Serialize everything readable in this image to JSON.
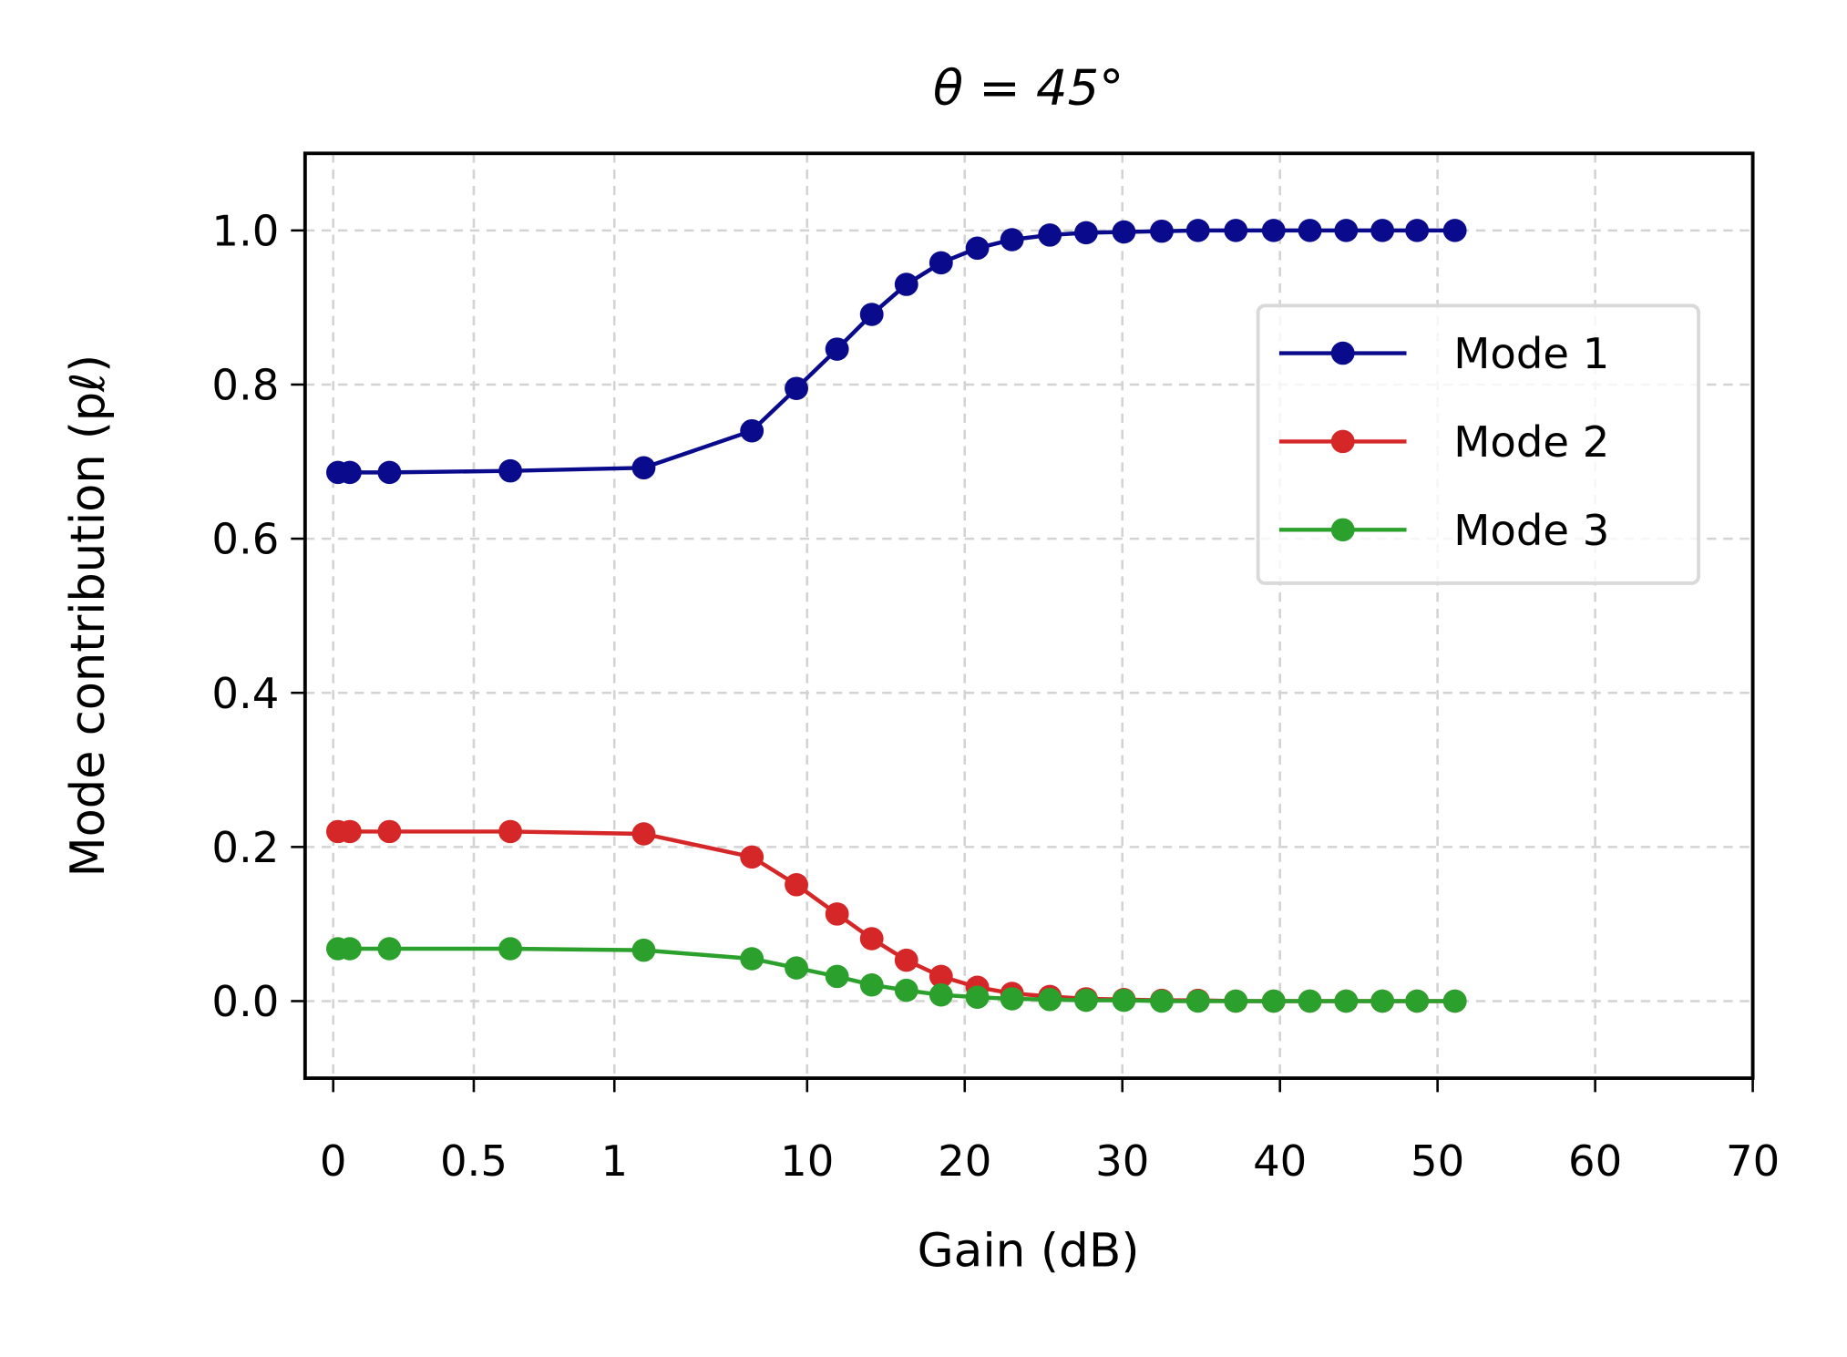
{
  "chart_data": {
    "type": "line",
    "title": "θ = 45°",
    "xlabel": "Gain (dB)",
    "ylabel": "Mode contribution (pℓ)",
    "x": [
      0.017,
      0.059,
      0.2,
      0.63,
      1.42,
      5.17,
      8.8,
      11.9,
      14.1,
      16.3,
      18.5,
      20.8,
      23.0,
      25.4,
      27.7,
      30.1,
      32.5,
      34.8,
      37.2,
      39.6,
      41.9,
      44.2,
      46.5,
      48.7,
      51.1
    ],
    "series": [
      {
        "name": "Mode 1",
        "color": "#0a0a8c",
        "values": [
          0.686,
          0.686,
          0.686,
          0.688,
          0.692,
          0.74,
          0.795,
          0.846,
          0.891,
          0.93,
          0.958,
          0.977,
          0.988,
          0.994,
          0.997,
          0.998,
          0.999,
          1,
          1,
          1,
          1,
          1,
          1,
          1,
          1
        ]
      },
      {
        "name": "Mode 2",
        "color": "#d62728",
        "values": [
          0.22,
          0.22,
          0.22,
          0.22,
          0.217,
          0.187,
          0.151,
          0.113,
          0.081,
          0.053,
          0.032,
          0.018,
          0.01,
          0.006,
          0.003,
          0.002,
          0.001,
          0.001,
          0,
          0,
          0,
          0,
          0,
          0,
          0
        ]
      },
      {
        "name": "Mode 3",
        "color": "#2ca02c",
        "values": [
          0.068,
          0.068,
          0.068,
          0.068,
          0.066,
          0.055,
          0.043,
          0.032,
          0.021,
          0.014,
          0.008,
          0.005,
          0.003,
          0.002,
          0.001,
          0.001,
          0,
          0,
          0,
          0,
          0,
          0,
          0,
          0,
          0
        ]
      }
    ],
    "xlim": [
      -0.1,
      70
    ],
    "xticks": [
      0,
      0.5,
      1,
      10,
      20,
      30,
      40,
      50,
      60,
      70
    ],
    "ylim": [
      -0.1,
      1.1
    ],
    "yticks": [
      {
        "value": 0,
        "label": "0.0"
      },
      {
        "value": 0.2,
        "label": "0.2"
      },
      {
        "value": 0.4,
        "label": "0.4"
      },
      {
        "value": 0.6,
        "label": "0.6"
      },
      {
        "value": 0.8,
        "label": "0.8"
      },
      {
        "value": 1,
        "label": "1.0"
      }
    ],
    "grid": true,
    "legend": "upper right"
  }
}
